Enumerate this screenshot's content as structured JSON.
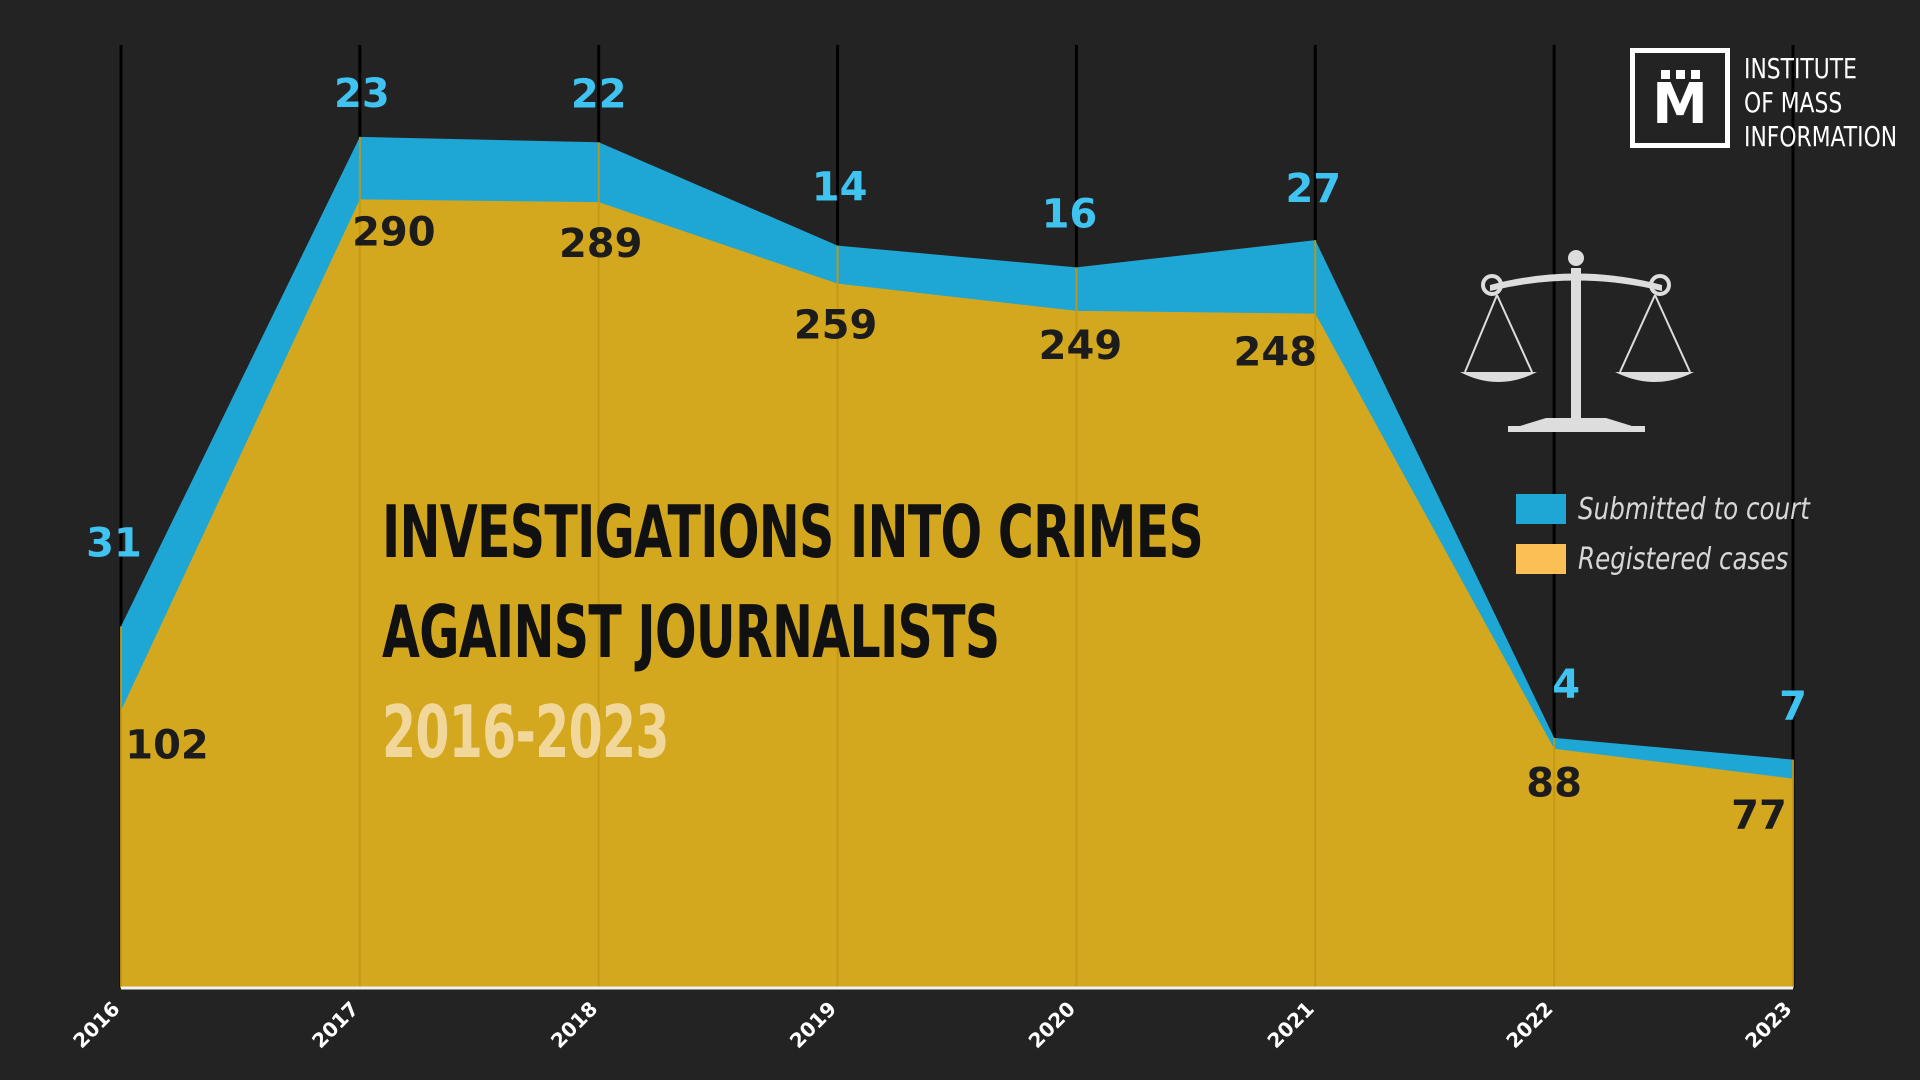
{
  "chart_data": {
    "type": "area",
    "title": [
      "INVESTIGATIONS INTO CRIMES",
      "AGAINST JOURNALISTS"
    ],
    "subtitle": "2016-2023",
    "x": [
      "2016",
      "2017",
      "2018",
      "2019",
      "2020",
      "2021",
      "2022",
      "2023"
    ],
    "stacked": true,
    "series": [
      {
        "name": "Registered cases",
        "values": [
          102,
          290,
          289,
          259,
          249,
          248,
          88,
          77
        ]
      },
      {
        "name": "Submitted to court",
        "values": [
          31,
          23,
          22,
          14,
          16,
          27,
          4,
          7
        ]
      }
    ],
    "ylim": [
      0,
      340
    ],
    "grid": true,
    "legend_position": "right"
  },
  "colors": {
    "background": "#232323",
    "registered": "#d4a81e",
    "submitted": "#1ea6d4",
    "submitted_label": "#3fc3f0",
    "registered_label": "#1c1c1c",
    "legend_registered_swatch": "#fbbf55",
    "gridline": "#000000"
  },
  "logo": {
    "letter": "M",
    "lines": [
      "INSTITUTE",
      "OF MASS",
      "INFORMATION"
    ]
  },
  "icons": {
    "scales": "scales-of-justice-icon"
  }
}
